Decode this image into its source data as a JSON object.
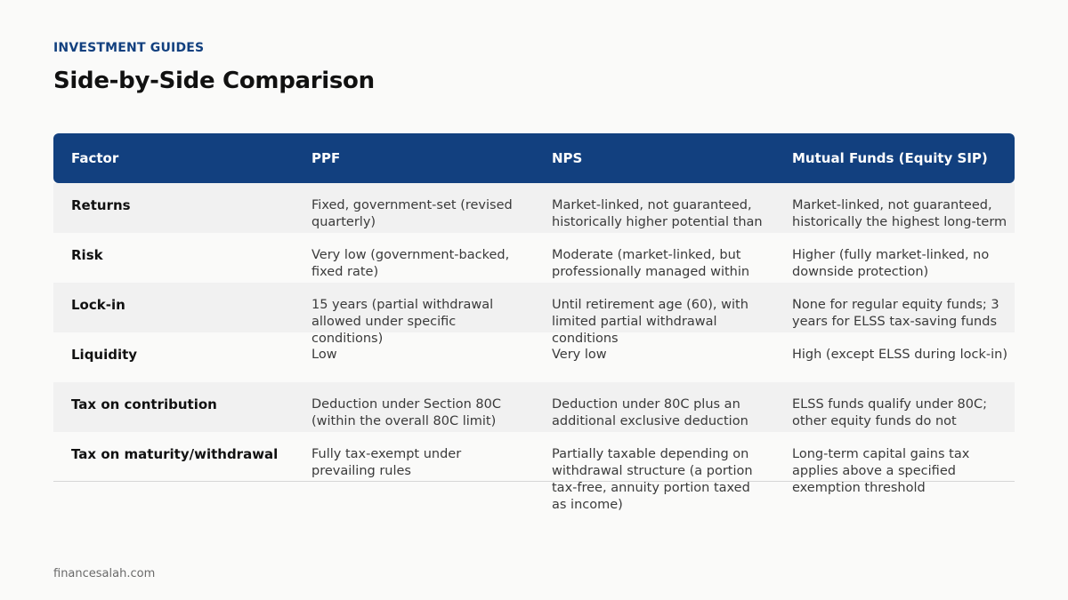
{
  "header": {
    "eyebrow": "INVESTMENT GUIDES",
    "title": "Side-by-Side Comparison"
  },
  "table": {
    "columns": [
      "Factor",
      "PPF",
      "NPS",
      "Mutual Funds (Equity SIP)"
    ],
    "rows": [
      {
        "factor": "Returns",
        "ppf": "Fixed, government-set (revised quarterly)",
        "nps": "Market-linked, not guaranteed, historically higher potential than",
        "mf": "Market-linked, not guaranteed, historically the highest long-term"
      },
      {
        "factor": "Risk",
        "ppf": "Very low (government-backed, fixed rate)",
        "nps": "Moderate (market-linked, but professionally managed within",
        "mf": "Higher (fully market-linked, no downside protection)"
      },
      {
        "factor": "Lock-in",
        "ppf": "15 years (partial withdrawal allowed under specific conditions)",
        "nps": "Until retirement age (60), with limited partial withdrawal conditions",
        "mf": "None for regular equity funds; 3 years for ELSS tax-saving funds"
      },
      {
        "factor": "Liquidity",
        "ppf": "Low",
        "nps": "Very low",
        "mf": "High (except ELSS during lock-in)"
      },
      {
        "factor": "Tax on contribution",
        "ppf": "Deduction under Section 80C (within the overall 80C limit)",
        "nps": "Deduction under 80C plus an additional exclusive deduction",
        "mf": "ELSS funds qualify under 80C; other equity funds do not"
      },
      {
        "factor": "Tax on maturity/withdrawal",
        "ppf": "Fully tax-exempt under prevailing rules",
        "nps": "Partially taxable depending on withdrawal structure (a portion tax-free, annuity portion taxed as income)",
        "mf": "Long-term capital gains tax applies above a specified exemption threshold"
      }
    ]
  },
  "footer": {
    "source": "financesalah.com"
  }
}
